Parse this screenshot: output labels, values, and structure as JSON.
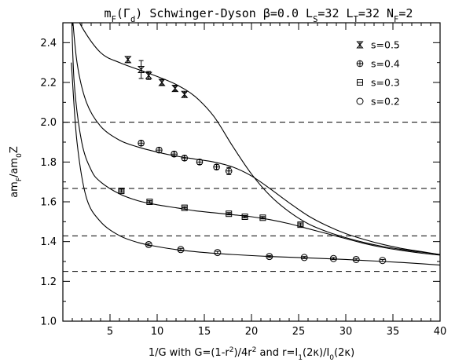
{
  "chart_data": {
    "type": "scatter",
    "title": "m_F(Γ_d) Schwinger-Dyson β=0.0 L_S=32 L_T=32 N_F=2",
    "title_parts": [
      "m",
      "F",
      "(Γ",
      "d",
      ") Schwinger-Dyson β=0.0 L",
      "S",
      "=32 L",
      "T",
      "=32 N",
      "F",
      "=2"
    ],
    "xlabel": "1/G with G=(1-r²)/4r² and r=I₁(2κ)/I₀(2κ)",
    "xlabel_parts": [
      "1/G with G=(1-r",
      "2",
      ")/4r",
      "2",
      " and r=I",
      "1",
      "(2κ)/I",
      "0",
      "(2κ)"
    ],
    "ylabel": "am_F/am_0Z",
    "ylabel_parts": [
      "am",
      "F",
      "/am",
      "0",
      "Z"
    ],
    "xlim": [
      0,
      40
    ],
    "ylim": [
      1.0,
      2.5
    ],
    "x_ticks": [
      5,
      10,
      15,
      20,
      25,
      30,
      35,
      40
    ],
    "x_tick_labels": [
      "5",
      "10",
      "15",
      "20",
      "25",
      "30",
      "35",
      "40"
    ],
    "y_ticks": [
      1.0,
      1.2,
      1.4,
      1.6,
      1.8,
      2.0,
      2.2,
      2.4
    ],
    "y_tick_labels": [
      "1.0",
      "1.2",
      "1.4",
      "1.6",
      "1.8",
      "2.0",
      "2.2",
      "2.4"
    ],
    "grid": false,
    "legend_position": "top-right",
    "reference_lines": [
      2.0,
      1.667,
      1.429,
      1.25
    ],
    "series": [
      {
        "name": "s=0.5",
        "marker": "hourglass",
        "points": [
          [
            6.9,
            2.315,
            0.015
          ],
          [
            8.3,
            2.265,
            0.045
          ],
          [
            9.1,
            2.235,
            0.02
          ],
          [
            10.5,
            2.2,
            0.012
          ],
          [
            11.9,
            2.17,
            0.012
          ],
          [
            12.9,
            2.14,
            0.01
          ]
        ],
        "curve": [
          [
            0.9,
            2.6
          ],
          [
            2,
            2.48
          ],
          [
            4,
            2.35
          ],
          [
            6,
            2.3
          ],
          [
            8,
            2.265
          ],
          [
            10,
            2.23
          ],
          [
            12,
            2.19
          ],
          [
            14,
            2.13
          ],
          [
            16,
            2.03
          ],
          [
            18,
            1.88
          ],
          [
            20,
            1.74
          ],
          [
            22,
            1.63
          ],
          [
            24,
            1.55
          ],
          [
            26,
            1.49
          ],
          [
            28,
            1.45
          ],
          [
            30,
            1.42
          ],
          [
            32,
            1.395
          ],
          [
            34,
            1.375
          ],
          [
            36,
            1.36
          ],
          [
            38,
            1.347
          ],
          [
            40,
            1.335
          ]
        ]
      },
      {
        "name": "s=0.4",
        "marker": "circleplus",
        "points": [
          [
            8.3,
            1.895,
            0.012
          ],
          [
            10.2,
            1.86,
            0.012
          ],
          [
            11.8,
            1.84,
            0.012
          ],
          [
            12.9,
            1.82,
            0.012
          ],
          [
            14.5,
            1.8,
            0.012
          ],
          [
            16.3,
            1.775,
            0.012
          ],
          [
            17.6,
            1.755,
            0.018
          ]
        ],
        "curve": [
          [
            0.9,
            2.6
          ],
          [
            1.5,
            2.3
          ],
          [
            2.5,
            2.1
          ],
          [
            4,
            1.98
          ],
          [
            6,
            1.91
          ],
          [
            8,
            1.875
          ],
          [
            10,
            1.85
          ],
          [
            12,
            1.83
          ],
          [
            14,
            1.815
          ],
          [
            16,
            1.8
          ],
          [
            18,
            1.775
          ],
          [
            20,
            1.73
          ],
          [
            22,
            1.665
          ],
          [
            24,
            1.595
          ],
          [
            26,
            1.53
          ],
          [
            28,
            1.48
          ],
          [
            30,
            1.44
          ],
          [
            32,
            1.41
          ],
          [
            34,
            1.385
          ],
          [
            36,
            1.365
          ],
          [
            38,
            1.35
          ],
          [
            40,
            1.335
          ]
        ]
      },
      {
        "name": "s=0.3",
        "marker": "square",
        "points": [
          [
            6.2,
            1.655,
            0.008
          ],
          [
            9.2,
            1.6,
            0.006
          ],
          [
            12.9,
            1.57,
            0.006
          ],
          [
            17.6,
            1.54,
            0.006
          ],
          [
            19.3,
            1.525,
            0.006
          ],
          [
            21.2,
            1.52,
            0.006
          ],
          [
            25.2,
            1.485,
            0.008
          ]
        ],
        "curve": [
          [
            0.9,
            2.6
          ],
          [
            1.2,
            2.2
          ],
          [
            2,
            1.9
          ],
          [
            3,
            1.76
          ],
          [
            4,
            1.7
          ],
          [
            6,
            1.64
          ],
          [
            8,
            1.605
          ],
          [
            10,
            1.585
          ],
          [
            12,
            1.57
          ],
          [
            14,
            1.555
          ],
          [
            16,
            1.545
          ],
          [
            18,
            1.535
          ],
          [
            20,
            1.525
          ],
          [
            22,
            1.51
          ],
          [
            24,
            1.49
          ],
          [
            26,
            1.465
          ],
          [
            28,
            1.44
          ],
          [
            30,
            1.415
          ],
          [
            32,
            1.39
          ],
          [
            34,
            1.37
          ],
          [
            36,
            1.355
          ],
          [
            38,
            1.342
          ],
          [
            40,
            1.332
          ]
        ]
      },
      {
        "name": "s=0.2",
        "marker": "circle",
        "points": [
          [
            9.1,
            1.385,
            0.006
          ],
          [
            12.5,
            1.36,
            0.006
          ],
          [
            16.4,
            1.345,
            0.006
          ],
          [
            21.9,
            1.325,
            0.005
          ],
          [
            25.6,
            1.32,
            0.005
          ],
          [
            28.7,
            1.315,
            0.005
          ],
          [
            31.1,
            1.31,
            0.005
          ],
          [
            33.9,
            1.305,
            0.005
          ]
        ],
        "curve": [
          [
            0.9,
            2.3
          ],
          [
            1.5,
            1.9
          ],
          [
            2.5,
            1.62
          ],
          [
            4,
            1.5
          ],
          [
            6,
            1.43
          ],
          [
            8,
            1.395
          ],
          [
            10,
            1.375
          ],
          [
            12,
            1.36
          ],
          [
            15,
            1.345
          ],
          [
            18,
            1.335
          ],
          [
            22,
            1.325
          ],
          [
            26,
            1.318
          ],
          [
            30,
            1.31
          ],
          [
            34,
            1.3
          ],
          [
            37,
            1.292
          ],
          [
            40,
            1.282
          ]
        ]
      }
    ]
  }
}
